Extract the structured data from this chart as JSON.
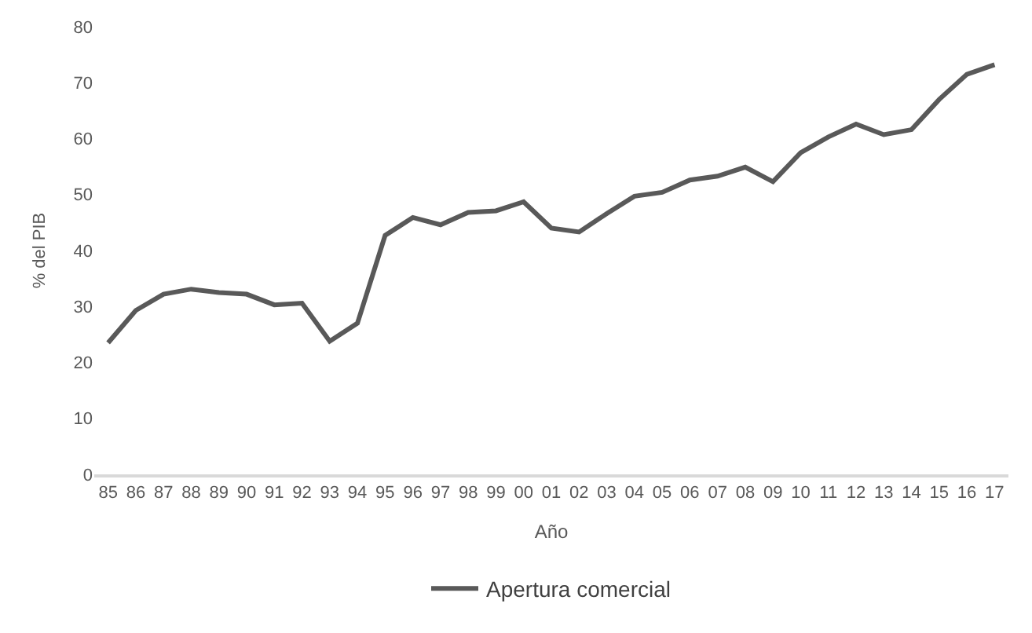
{
  "chart_data": {
    "type": "line",
    "xlabel": "Año",
    "ylabel": "% del PIB",
    "categories": [
      "85",
      "86",
      "87",
      "88",
      "89",
      "90",
      "91",
      "92",
      "93",
      "94",
      "95",
      "96",
      "97",
      "98",
      "99",
      "00",
      "01",
      "02",
      "03",
      "04",
      "05",
      "06",
      "07",
      "08",
      "09",
      "10",
      "11",
      "12",
      "13",
      "14",
      "15",
      "16",
      "17"
    ],
    "series": [
      {
        "name": "Apertura comercial",
        "color": "#595959",
        "values": [
          23.5,
          29.3,
          32.2,
          33.1,
          32.5,
          32.2,
          30.3,
          30.6,
          23.8,
          27.0,
          42.7,
          45.9,
          44.6,
          46.8,
          47.1,
          48.7,
          44.0,
          43.3,
          46.6,
          49.7,
          50.4,
          52.6,
          53.3,
          54.9,
          52.3,
          57.5,
          60.3,
          62.6,
          60.7,
          61.6,
          67.0,
          71.5,
          73.2
        ]
      }
    ],
    "ylim": [
      0,
      80
    ],
    "yticks": [
      0,
      10,
      20,
      30,
      40,
      50,
      60,
      70,
      80
    ],
    "grid": false,
    "legend": "bottom",
    "marker": "none",
    "line_style": "solid"
  }
}
